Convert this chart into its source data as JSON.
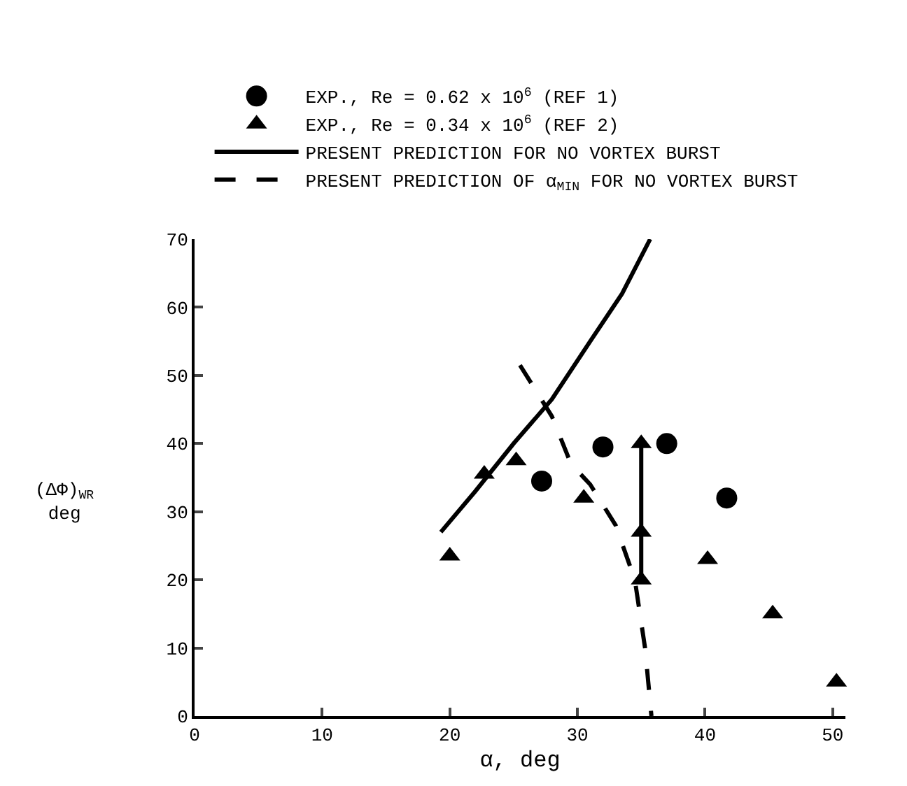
{
  "chart_data": {
    "type": "scatter",
    "xlabel": "α, deg",
    "ylabel": "(ΔΦ)$_{WR}$\ndeg",
    "xlim": [
      0,
      51
    ],
    "xticks": [
      0,
      10,
      20,
      30,
      40,
      50
    ],
    "ylim": [
      0,
      70
    ],
    "yticks": [
      0,
      10,
      20,
      30,
      40,
      50,
      60,
      70
    ],
    "grid": false,
    "legend": "top",
    "series": [
      {
        "name": "EXP., Re = 0.62 x 10$^{6}$ (REF 1)",
        "marker": "circle",
        "color": "#000000",
        "x": [
          27.2,
          32,
          37,
          41.7
        ],
        "values": [
          34.5,
          39.5,
          40,
          32
        ]
      },
      {
        "name": "EXP., Re = 0.34 x 10$^{6}$ (REF 2)",
        "marker": "triangle",
        "color": "#000000",
        "x": [
          20,
          22.7,
          25.2,
          30.5,
          35,
          35,
          35,
          40.2,
          45.3,
          50.3
        ],
        "values": [
          23.5,
          35.5,
          37.5,
          32,
          40,
          27,
          20,
          23,
          15,
          5
        ]
      },
      {
        "name": "PRESENT PREDICTION FOR NO VORTEX BURST",
        "type": "line",
        "line_style": "solid",
        "color": "#000000",
        "x": [
          19.3,
          22,
          25,
          28,
          31,
          33.5,
          35.7
        ],
        "values": [
          27,
          33,
          40,
          46.5,
          55,
          62,
          70
        ]
      },
      {
        "name": "PRESENT PREDICTION OF α$_{MIN}$ FOR NO VORTEX BURST",
        "type": "line",
        "line_style": "dashed",
        "color": "#000000",
        "x": [
          25.5,
          28,
          29.5,
          31,
          33,
          34.5,
          35.3,
          35.8
        ],
        "values": [
          51.5,
          44,
          37,
          34,
          28,
          20,
          10,
          0
        ]
      },
      {
        "type": "line",
        "line_style": "solid",
        "color": "#000000",
        "x": [
          35,
          35
        ],
        "values": [
          20,
          40
        ]
      }
    ]
  }
}
